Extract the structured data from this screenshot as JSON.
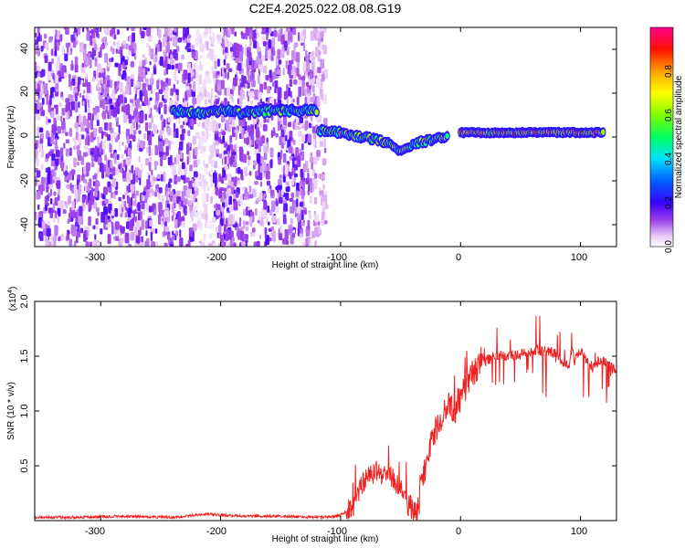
{
  "title": "C2E4.2025.022.08.08.G19",
  "colors": {
    "snr_line": "#ee2020",
    "colormap": [
      "#ffffff",
      "#e2c0f2",
      "#8a2be2",
      "#4b00ff",
      "#0000ff",
      "#00d5ff",
      "#00ff00",
      "#ffff00",
      "#ff9900",
      "#ff0000",
      "#ff0090"
    ]
  },
  "chart_data": [
    {
      "type": "heatmap",
      "xlabel": "Height of straight line (km)",
      "ylabel": "Frequency (Hz)",
      "xlim": [
        -355,
        130
      ],
      "ylim": [
        -50,
        50
      ],
      "x_ticks": [
        "-300",
        "-200",
        "-100",
        "0",
        "100"
      ],
      "y_ticks": [
        "40",
        "20",
        "0",
        "-20",
        "-40"
      ],
      "grid": false,
      "colorbar": {
        "label": "Normalized spectral amplitude",
        "range": [
          0,
          1
        ],
        "ticks": [
          "0.0",
          "0.2",
          "0.4",
          "0.6",
          "0.8"
        ]
      },
      "features": [
        {
          "description": "scattered low-amplitude noise",
          "x_range": [
            -355,
            -112
          ],
          "amplitude": "0.05-0.25"
        },
        {
          "description": "signal trace near +11 Hz",
          "x": [
            -240,
            -220,
            -200,
            -180,
            -160,
            -140,
            -120
          ],
          "y": [
            12,
            11,
            12,
            11,
            12,
            12,
            12
          ]
        },
        {
          "description": "descending signal trace",
          "x": [
            -118,
            -100,
            -85,
            -70,
            -60,
            -50,
            -40,
            -30,
            -20,
            -10
          ],
          "y": [
            3,
            2,
            0,
            -1,
            -3,
            -7,
            -3,
            -2,
            -1,
            0
          ]
        },
        {
          "description": "strong signal near +2 Hz",
          "x": [
            0,
            20,
            40,
            60,
            80,
            100,
            120
          ],
          "y": [
            2,
            2,
            2,
            2,
            2,
            2,
            2
          ]
        }
      ]
    },
    {
      "type": "line",
      "xlabel": "Height of straight line (km)",
      "ylabel": "SNR (10 * v/v)",
      "y_multiplier": "(x10",
      "y_multiplier_exp": "4",
      "y_multiplier_close": ")",
      "xlim": [
        -355,
        130
      ],
      "ylim": [
        0,
        2.0
      ],
      "x_ticks": [
        "-300",
        "-200",
        "-100",
        "0",
        "100"
      ],
      "y_ticks": [
        "0.5",
        "1.0",
        "1.5",
        "2.0"
      ],
      "grid": false,
      "series": [
        {
          "x": [
            -355,
            -320,
            -280,
            -240,
            -210,
            -200,
            -180,
            -150,
            -110,
            -100,
            -90,
            -85,
            -80,
            -75,
            -70,
            -65,
            -60,
            -55,
            -50,
            -45,
            -40,
            -35,
            -30,
            -25,
            -20,
            -15,
            -10,
            -5,
            0,
            5,
            10,
            15,
            20,
            25,
            30,
            40,
            50,
            60,
            70,
            80,
            85,
            90,
            93,
            95,
            100,
            105,
            110,
            115,
            120,
            125,
            130
          ],
          "y": [
            0.03,
            0.03,
            0.04,
            0.03,
            0.06,
            0.05,
            0.04,
            0.04,
            0.03,
            0.05,
            0.12,
            0.25,
            0.38,
            0.42,
            0.45,
            0.4,
            0.45,
            0.35,
            0.3,
            0.18,
            0.08,
            0.15,
            0.45,
            0.7,
            0.85,
            0.95,
            1.05,
            1.0,
            1.1,
            1.25,
            1.35,
            1.4,
            1.45,
            1.48,
            1.5,
            1.5,
            1.52,
            1.55,
            1.55,
            1.52,
            1.45,
            1.4,
            1.6,
            1.45,
            1.55,
            1.45,
            1.4,
            1.45,
            1.45,
            1.4,
            1.38
          ]
        }
      ]
    }
  ]
}
